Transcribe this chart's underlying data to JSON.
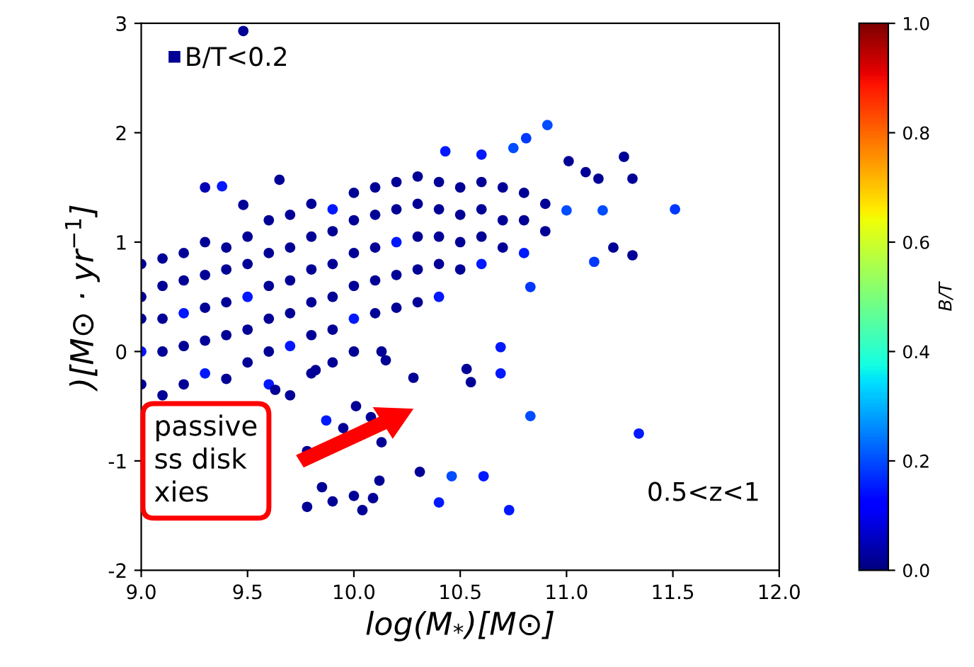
{
  "chart_data": {
    "type": "scatter",
    "xlabel": "log(M$_{*}$)[M⊙]",
    "ylabel": ")[M⊙ · yr$^{−1}$]",
    "clabel": "B/T",
    "xlim": [
      9.0,
      12.0
    ],
    "xticks": [
      {
        "value": 9,
        "label": "9.0"
      },
      9.5,
      {
        "value": 10,
        "label": "10.0"
      },
      10.5,
      {
        "value": 11,
        "label": "11.0"
      },
      11.5,
      {
        "value": 12,
        "label": "12.0"
      }
    ],
    "ylim": [
      -2,
      3
    ],
    "yticks": [
      -2,
      -1,
      0,
      1,
      2,
      3
    ],
    "clim": [
      0,
      1
    ],
    "cticks": [
      {
        "value": 0,
        "label": "0.0"
      },
      0.2,
      0.4,
      0.6,
      0.8,
      {
        "value": 1,
        "label": "1.0"
      }
    ],
    "legend": "top left",
    "marker": "circle",
    "grid": false,
    "annotations": [
      "0.5<z<1",
      "passive\nss disk\nxies"
    ],
    "series": [
      {
        "name": "B/T<0.2",
        "x": [
          9.0,
          9.0,
          9.0,
          9.0,
          9.0,
          9.1,
          9.1,
          9.1,
          9.1,
          9.1,
          9.2,
          9.2,
          9.2,
          9.2,
          9.2,
          9.3,
          9.3,
          9.3,
          9.3,
          9.3,
          9.4,
          9.4,
          9.4,
          9.4,
          9.4,
          9.5,
          9.5,
          9.5,
          9.5,
          9.5,
          9.6,
          9.6,
          9.6,
          9.6,
          9.6,
          9.6,
          9.7,
          9.7,
          9.7,
          9.7,
          9.7,
          9.7,
          9.8,
          9.8,
          9.8,
          9.8,
          9.8,
          9.8,
          9.9,
          9.9,
          9.9,
          9.9,
          9.9,
          9.9,
          10.0,
          10.0,
          10.0,
          10.0,
          10.0,
          10.0,
          10.1,
          10.1,
          10.1,
          10.1,
          10.1,
          10.2,
          10.2,
          10.2,
          10.2,
          10.2,
          10.3,
          10.3,
          10.3,
          10.3,
          10.3,
          10.4,
          10.4,
          10.4,
          10.4,
          10.4,
          10.5,
          10.5,
          10.5,
          10.5,
          10.6,
          10.6,
          10.6,
          10.6,
          10.7,
          10.7,
          10.7,
          10.8,
          10.8,
          10.8,
          10.9,
          10.9,
          9.48,
          10.91,
          10.81,
          10.75,
          10.43,
          10.6,
          11.27,
          11.01,
          11.09,
          11.15,
          11.31,
          11.51,
          11.22,
          11.31,
          11.13,
          9.3,
          9.38,
          9.65,
          9.48,
          11.0,
          11.17,
          10.83,
          10.69,
          10.69,
          10.53,
          10.55,
          10.83,
          11.34,
          10.28,
          10.61,
          10.46,
          10.31,
          10.4,
          10.73,
          10.12,
          10.04,
          9.78,
          9.9,
          10.09,
          10.0,
          9.85,
          10.13,
          10.01,
          10.08,
          9.87,
          9.78,
          9.95,
          10.15,
          10.13,
          9.82,
          9.63
        ],
        "values": [
          0.8,
          0.5,
          0.3,
          0.0,
          -0.3,
          0.85,
          0.6,
          0.3,
          0.0,
          -0.4,
          0.9,
          0.65,
          0.35,
          0.05,
          -0.3,
          1.0,
          0.7,
          0.4,
          0.1,
          -0.2,
          0.95,
          0.75,
          0.45,
          0.15,
          -0.25,
          1.05,
          0.8,
          0.5,
          0.2,
          -0.1,
          1.2,
          0.9,
          0.6,
          0.3,
          0.0,
          -0.3,
          1.25,
          0.95,
          0.65,
          0.35,
          0.05,
          -0.4,
          1.35,
          1.05,
          0.75,
          0.45,
          0.15,
          -0.2,
          1.3,
          1.1,
          0.8,
          0.5,
          0.2,
          -0.1,
          1.45,
          1.2,
          0.9,
          0.6,
          0.3,
          0.0,
          1.5,
          1.25,
          0.95,
          0.65,
          0.35,
          1.55,
          1.3,
          1.0,
          0.7,
          0.4,
          1.6,
          1.35,
          1.05,
          0.75,
          0.45,
          1.55,
          1.3,
          1.05,
          0.8,
          0.5,
          1.5,
          1.25,
          1.0,
          0.75,
          1.55,
          1.3,
          1.05,
          0.8,
          1.5,
          1.2,
          0.95,
          1.45,
          1.2,
          0.9,
          1.35,
          1.1,
          2.93,
          2.07,
          1.95,
          1.86,
          1.83,
          1.8,
          1.78,
          1.74,
          1.64,
          1.58,
          1.58,
          1.3,
          0.95,
          0.88,
          0.82,
          1.5,
          1.51,
          1.57,
          1.34,
          1.29,
          1.29,
          0.59,
          0.04,
          -0.2,
          -0.16,
          -0.28,
          -0.59,
          -0.75,
          -0.24,
          -1.14,
          -1.14,
          -1.1,
          -1.38,
          -1.45,
          -1.18,
          -1.45,
          -1.42,
          -1.37,
          -1.34,
          -1.32,
          -1.24,
          -0.83,
          -0.5,
          -0.6,
          -0.63,
          -0.91,
          -0.7,
          -0.08,
          0.0,
          -0.17,
          -0.35
        ],
        "cvalues": [
          0.02,
          0.02,
          0.02,
          0.15,
          0.02,
          0.02,
          0.02,
          0.02,
          0.02,
          0.02,
          0.02,
          0.02,
          0.15,
          0.02,
          0.02,
          0.02,
          0.02,
          0.02,
          0.02,
          0.15,
          0.02,
          0.02,
          0.02,
          0.02,
          0.02,
          0.02,
          0.02,
          0.15,
          0.02,
          0.02,
          0.02,
          0.02,
          0.02,
          0.02,
          0.02,
          0.15,
          0.02,
          0.02,
          0.02,
          0.02,
          0.15,
          0.02,
          0.02,
          0.02,
          0.02,
          0.02,
          0.02,
          0.02,
          0.15,
          0.02,
          0.02,
          0.02,
          0.02,
          0.02,
          0.02,
          0.02,
          0.02,
          0.02,
          0.15,
          0.02,
          0.02,
          0.02,
          0.02,
          0.02,
          0.02,
          0.02,
          0.02,
          0.15,
          0.02,
          0.02,
          0.02,
          0.02,
          0.02,
          0.02,
          0.02,
          0.02,
          0.02,
          0.02,
          0.02,
          0.15,
          0.02,
          0.02,
          0.02,
          0.02,
          0.02,
          0.02,
          0.02,
          0.15,
          0.02,
          0.02,
          0.02,
          0.02,
          0.02,
          0.15,
          0.02,
          0.02,
          0.02,
          0.2,
          0.18,
          0.2,
          0.15,
          0.15,
          0.02,
          0.02,
          0.02,
          0.02,
          0.02,
          0.18,
          0.02,
          0.02,
          0.18,
          0.05,
          0.15,
          0.02,
          0.02,
          0.2,
          0.2,
          0.18,
          0.15,
          0.15,
          0.02,
          0.02,
          0.2,
          0.15,
          0.02,
          0.15,
          0.2,
          0.02,
          0.15,
          0.15,
          0.02,
          0.02,
          0.02,
          0.02,
          0.02,
          0.02,
          0.02,
          0.02,
          0.02,
          0.02,
          0.15,
          0.02,
          0.02,
          0.02,
          0.02,
          0.02,
          0.02
        ]
      }
    ]
  }
}
